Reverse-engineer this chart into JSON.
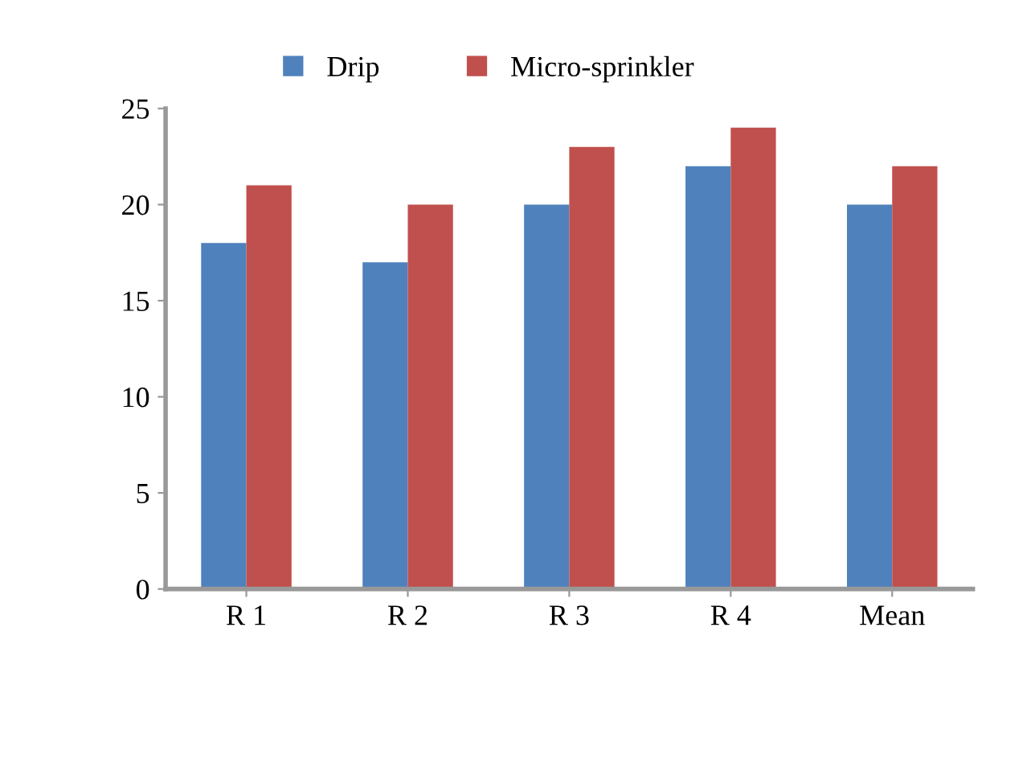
{
  "chart_data": {
    "type": "bar",
    "categories": [
      "R 1",
      "R 2",
      "R 3",
      "R 4",
      "Mean"
    ],
    "series": [
      {
        "name": "Drip",
        "color": "#4f81bd",
        "values": [
          18,
          17,
          20,
          22,
          20
        ]
      },
      {
        "name": "Micro-sprinkler",
        "color": "#c0504d",
        "values": [
          21,
          20,
          23,
          24,
          22
        ]
      }
    ],
    "ylim": [
      0,
      25
    ],
    "yticks": [
      0,
      5,
      10,
      15,
      20,
      25
    ],
    "grid": false,
    "legend": "top"
  }
}
